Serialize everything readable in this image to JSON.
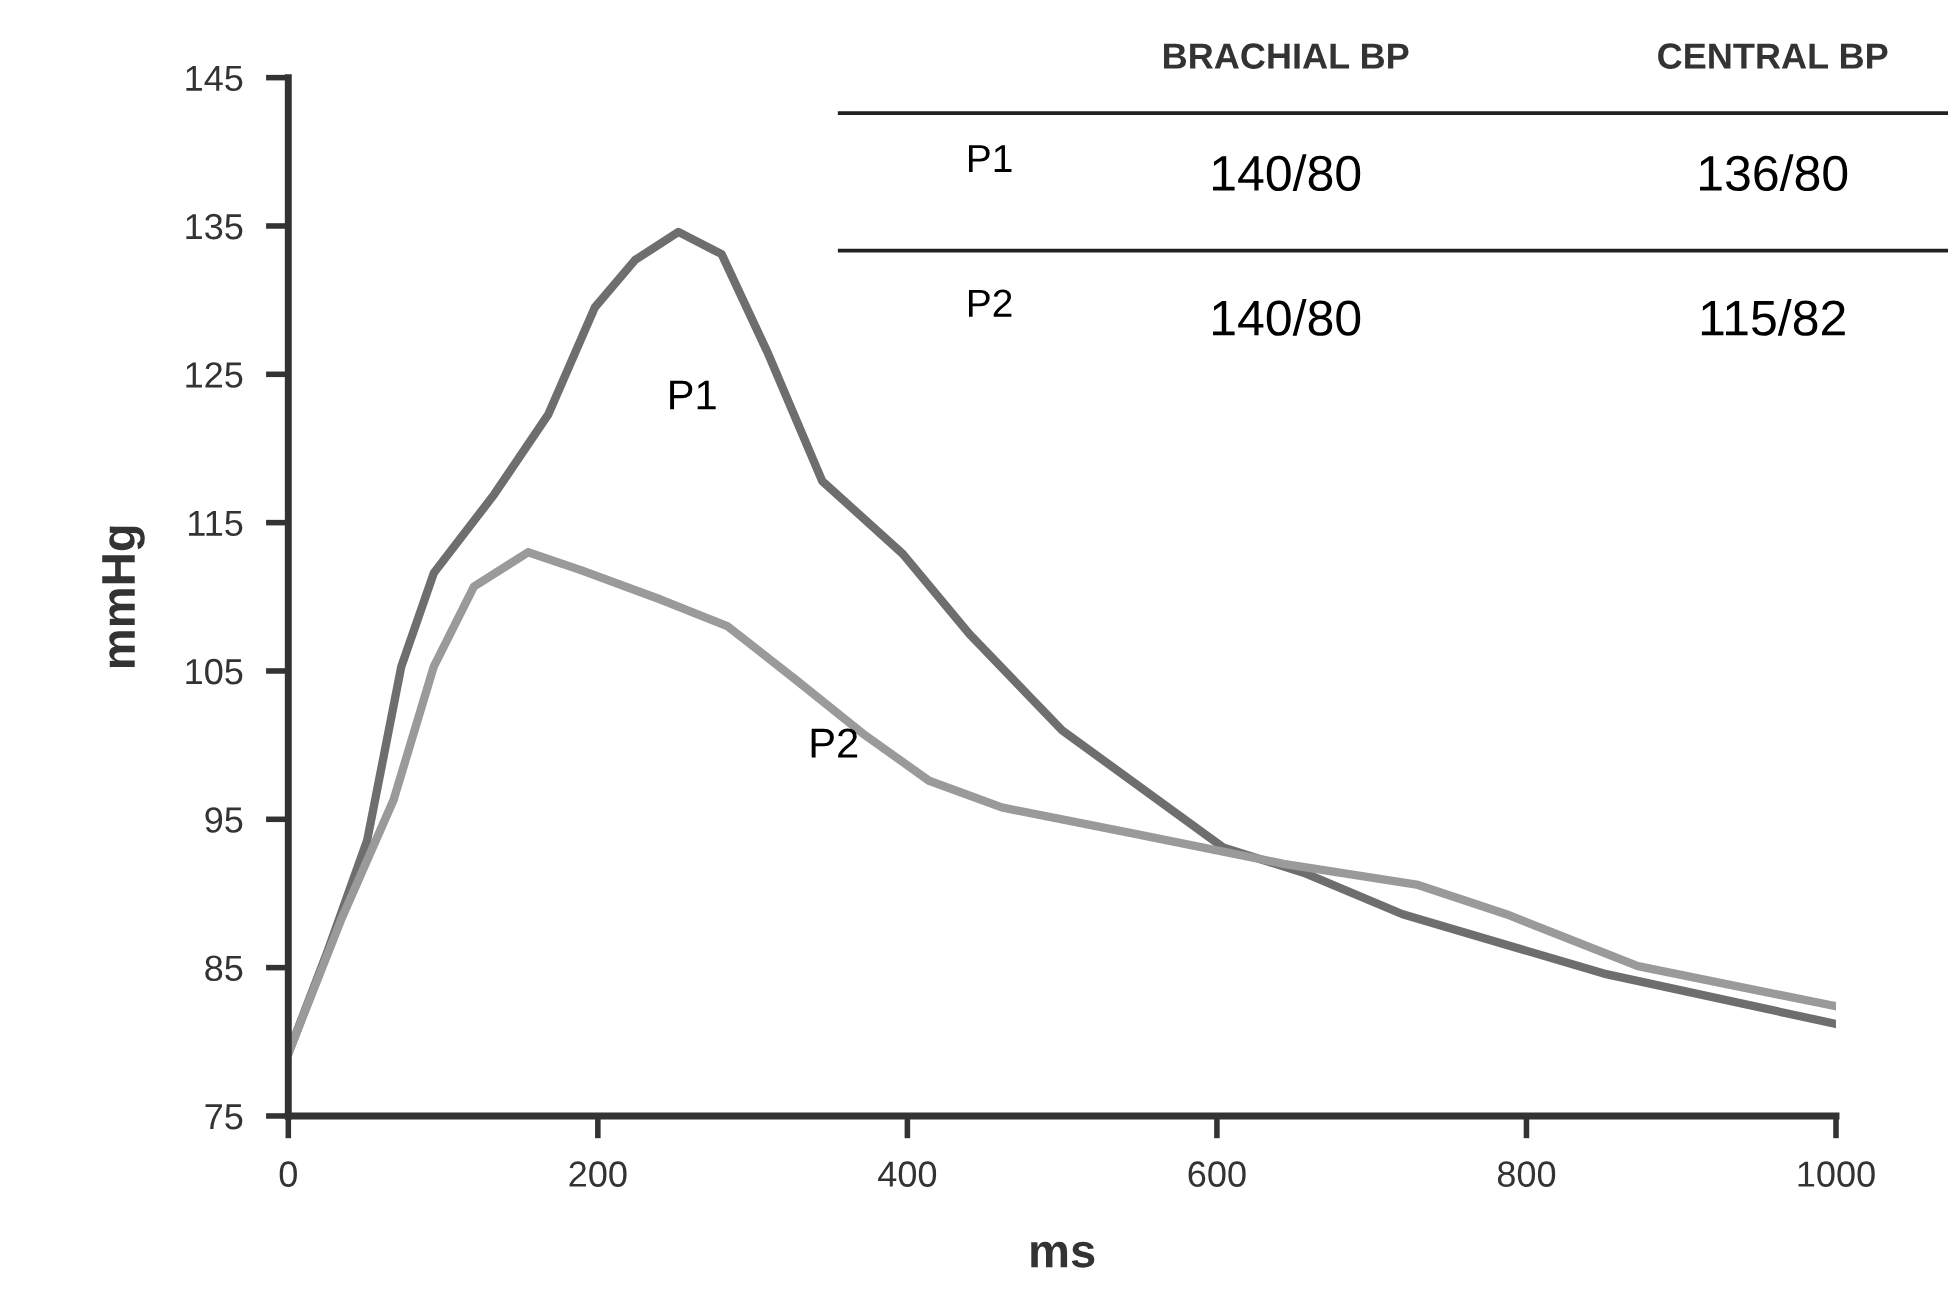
{
  "chart_data": {
    "type": "line",
    "xlabel": "ms",
    "ylabel": "mmHg",
    "xlim": [
      0,
      1000
    ],
    "xticks": [
      0,
      200,
      400,
      600,
      800,
      1000
    ],
    "ylim": [
      75,
      145
    ],
    "yticks": [
      75,
      85,
      95,
      105,
      115,
      125,
      135,
      145
    ],
    "grid": false,
    "legend": false,
    "marker": "none",
    "line_style": "solid",
    "series": [
      {
        "name": "P1",
        "color": "#6e6e6e",
        "x": [
          0,
          25,
          51,
          73,
          94,
          133,
          168,
          198,
          224,
          252,
          280,
          310,
          345,
          397,
          440,
          500,
          604,
          656,
          720,
          850,
          1000
        ],
        "values": [
          79.2,
          86,
          93.6,
          105.3,
          111.6,
          116.9,
          122.3,
          129.5,
          132.7,
          134.6,
          133.1,
          126.4,
          117.8,
          112.9,
          107.5,
          101,
          93.1,
          91.4,
          88.6,
          84.6,
          81.2
        ]
      },
      {
        "name": "P2",
        "color": "#9a9a9a",
        "x": [
          0,
          34,
          68,
          94,
          120,
          155,
          189,
          241,
          284,
          328,
          371,
          414,
          461,
          548,
          643,
          729,
          787,
          872,
          1000
        ],
        "values": [
          79.2,
          88.2,
          96.3,
          105.3,
          110.7,
          113,
          111.8,
          109.8,
          108,
          104.4,
          100.8,
          97.6,
          95.8,
          94,
          92,
          90.6,
          88.6,
          85.1,
          82.4
        ]
      }
    ],
    "annotations": [
      "BRACHIAL BP",
      "CENTRAL BP",
      "P1",
      "140/80",
      "136/80",
      "P2",
      "140/80",
      "115/82"
    ]
  }
}
